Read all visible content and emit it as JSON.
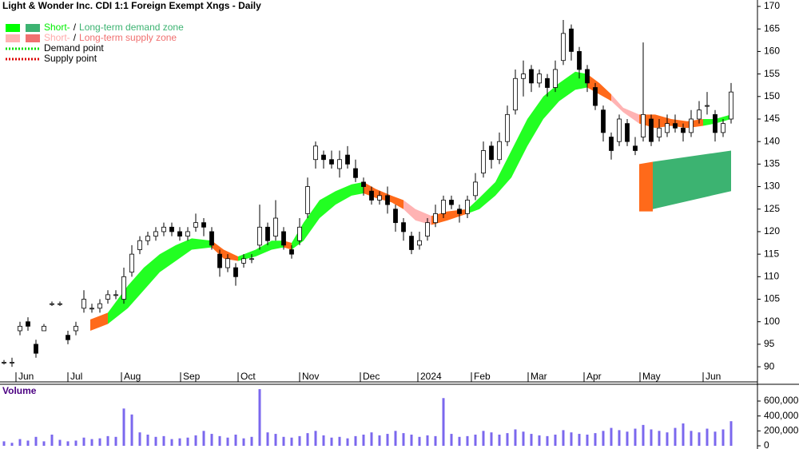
{
  "chart_data": {
    "type": "candlestick",
    "title": "Light & Wonder Inc. CDI 1:1 Foreign Exempt Xngs - Daily",
    "legend": [
      {
        "parts": [
          "Short-",
          "/",
          "Long-term demand zone"
        ],
        "colors": [
          "#00ee00",
          "#000000",
          "#3cb371"
        ],
        "swatches": [
          "#00ff00",
          "#3cb371"
        ]
      },
      {
        "parts": [
          "Short-",
          "/",
          "Long-term supply zone"
        ],
        "colors": [
          "#ffaaaa",
          "#000000",
          "#f07070"
        ],
        "swatches": [
          "#ffb3b3",
          "#f07070"
        ]
      },
      {
        "parts": [
          "Demand point"
        ],
        "colors": [
          "#000000"
        ],
        "line": "#00dd00"
      },
      {
        "parts": [
          "Supply point"
        ],
        "colors": [
          "#000000"
        ],
        "line": "#dd0000"
      }
    ],
    "xlim": [
      0,
      94.8
    ],
    "xticks": [
      {
        "value": 2,
        "label": "Jun"
      },
      {
        "value": 8.5,
        "label": "Jul"
      },
      {
        "value": 15.2,
        "label": "Aug"
      },
      {
        "value": 22.6,
        "label": "Sep"
      },
      {
        "value": 29.8,
        "label": "Oct"
      },
      {
        "value": 37.5,
        "label": "Nov"
      },
      {
        "value": 45.1,
        "label": "Dec"
      },
      {
        "value": 52.3,
        "label": "2024"
      },
      {
        "value": 59,
        "label": "Feb"
      },
      {
        "value": 66.1,
        "label": "Mar"
      },
      {
        "value": 73.1,
        "label": "Apr"
      },
      {
        "value": 80.1,
        "label": "May"
      },
      {
        "value": 88,
        "label": "Jun"
      }
    ],
    "ylim": [
      87,
      171
    ],
    "yticks": [
      90,
      95,
      100,
      105,
      110,
      115,
      120,
      125,
      130,
      135,
      140,
      145,
      150,
      155,
      160,
      165,
      170
    ],
    "candles": [
      [
        91,
        91.5,
        90.5,
        91
      ],
      [
        91,
        92,
        90,
        91
      ],
      [
        98,
        100,
        97,
        99
      ],
      [
        100,
        101,
        98,
        99
      ],
      [
        95,
        96,
        92,
        93
      ],
      [
        98,
        99.5,
        98,
        99
      ],
      [
        104,
        104.5,
        103.5,
        104
      ],
      [
        104,
        104.5,
        103.5,
        104
      ],
      [
        97,
        98,
        95,
        96
      ],
      [
        98,
        100,
        97,
        99
      ],
      [
        103,
        107,
        102,
        105
      ],
      [
        103,
        104,
        102,
        103
      ],
      [
        103,
        105,
        102,
        104
      ],
      [
        105,
        107,
        104,
        106
      ],
      [
        106,
        107,
        105,
        106
      ],
      [
        105,
        112,
        104,
        110
      ],
      [
        111,
        117,
        110,
        115
      ],
      [
        116,
        119,
        115,
        118
      ],
      [
        118,
        120,
        117,
        119
      ],
      [
        119,
        121,
        118,
        120
      ],
      [
        120,
        122,
        119,
        121
      ],
      [
        121,
        122,
        119,
        120
      ],
      [
        120,
        121,
        118,
        119
      ],
      [
        119,
        121,
        118,
        120
      ],
      [
        121,
        124,
        120,
        122
      ],
      [
        122,
        123,
        119,
        121
      ],
      [
        120,
        121,
        116,
        117
      ],
      [
        115,
        116,
        110,
        112
      ],
      [
        112,
        115,
        111,
        114
      ],
      [
        112,
        113,
        108,
        110
      ],
      [
        113,
        115,
        112,
        114
      ],
      [
        114,
        115,
        113,
        114
      ],
      [
        117,
        126,
        116,
        121
      ],
      [
        121,
        122,
        117,
        118
      ],
      [
        119,
        127,
        118,
        123
      ],
      [
        120,
        121,
        116,
        117
      ],
      [
        116,
        117,
        114,
        115
      ],
      [
        118,
        123,
        117,
        121
      ],
      [
        124,
        132,
        123,
        130
      ],
      [
        136,
        140,
        134,
        139
      ],
      [
        137,
        138,
        134,
        136
      ],
      [
        136,
        138,
        134,
        135
      ],
      [
        134,
        138,
        132,
        136
      ],
      [
        137,
        139,
        134,
        135
      ],
      [
        134,
        136,
        131,
        132
      ],
      [
        131,
        132,
        128,
        130
      ],
      [
        129,
        130,
        126,
        127
      ],
      [
        127,
        129,
        126,
        128
      ],
      [
        128,
        130,
        124,
        126
      ],
      [
        125,
        126,
        120,
        122
      ],
      [
        122,
        123,
        118,
        120
      ],
      [
        119,
        120,
        115,
        116
      ],
      [
        117,
        120,
        116,
        118
      ],
      [
        119,
        123,
        118,
        122
      ],
      [
        122,
        126,
        121,
        124
      ],
      [
        124,
        128,
        123,
        127
      ],
      [
        127,
        128,
        125,
        126
      ],
      [
        125,
        126,
        122,
        124
      ],
      [
        124,
        128,
        123,
        127
      ],
      [
        128,
        133,
        127,
        131
      ],
      [
        133,
        140,
        132,
        138
      ],
      [
        139,
        140,
        134,
        136
      ],
      [
        136,
        142,
        135,
        140
      ],
      [
        140,
        148,
        139,
        146
      ],
      [
        147,
        156,
        146,
        154
      ],
      [
        154,
        158,
        150,
        155
      ],
      [
        156,
        157,
        151,
        153
      ],
      [
        153,
        156,
        152,
        155
      ],
      [
        154,
        155,
        150,
        152
      ],
      [
        152,
        158,
        151,
        156
      ],
      [
        158,
        167,
        157,
        164
      ],
      [
        165,
        166,
        158,
        160
      ],
      [
        160,
        161,
        154,
        156
      ],
      [
        156,
        157,
        151,
        153
      ],
      [
        152,
        153,
        147,
        148
      ],
      [
        147,
        148,
        140,
        142
      ],
      [
        141,
        142,
        136,
        138
      ],
      [
        140,
        146,
        139,
        145
      ],
      [
        144,
        145,
        139,
        140
      ],
      [
        139,
        141,
        137,
        138
      ],
      [
        141,
        162,
        140,
        146
      ],
      [
        145,
        146,
        139,
        140
      ],
      [
        141,
        145,
        140,
        143
      ],
      [
        142,
        146,
        141,
        144
      ],
      [
        144,
        146,
        142,
        143
      ],
      [
        143,
        144,
        140,
        142
      ],
      [
        142,
        147,
        141,
        145
      ],
      [
        145,
        149,
        144,
        147
      ],
      [
        148,
        151,
        146,
        148
      ],
      [
        146,
        147,
        140,
        142
      ],
      [
        142,
        145,
        141,
        144
      ],
      [
        145,
        153,
        144,
        151
      ]
    ],
    "zones": [
      {
        "color": "#ff6a1a",
        "x": [
          11.3,
          13.5
        ],
        "upper": [
          100.5,
          102
        ],
        "lower": [
          98,
          99.5
        ]
      },
      {
        "color": "#22ff22",
        "x": [
          13.5,
          16,
          18,
          20,
          22,
          24,
          26.5
        ],
        "upper": [
          102,
          108,
          112,
          115,
          117,
          118.5,
          118
        ],
        "lower": [
          99.5,
          103,
          107,
          111,
          113.5,
          116,
          116.5
        ]
      },
      {
        "color": "#ff6a1a",
        "x": [
          26.5,
          28,
          29.8
        ],
        "upper": [
          118,
          116,
          114.5
        ],
        "lower": [
          116.5,
          114,
          113.5
        ]
      },
      {
        "color": "#22ff22",
        "x": [
          29.8,
          32,
          34,
          35.5
        ],
        "upper": [
          114.5,
          116,
          118,
          118
        ],
        "lower": [
          113.5,
          114.5,
          116,
          116.5
        ]
      },
      {
        "color": "#ff6a1a",
        "x": [
          35.5,
          36.5
        ],
        "upper": [
          118,
          117.5
        ],
        "lower": [
          116.5,
          116
        ]
      },
      {
        "color": "#22ff22",
        "x": [
          36.5,
          38,
          40,
          42,
          44,
          45.5
        ],
        "upper": [
          117.5,
          122,
          127,
          129,
          130.5,
          131
        ],
        "lower": [
          116,
          118,
          123,
          126,
          128,
          128.5
        ]
      },
      {
        "color": "#ff6a1a",
        "x": [
          45.5,
          47,
          49,
          50.5
        ],
        "upper": [
          131,
          129.5,
          128,
          127
        ],
        "lower": [
          128.5,
          127.5,
          126.5,
          125
        ]
      },
      {
        "color": "#ffb3b3",
        "x": [
          50.5,
          52,
          54
        ],
        "upper": [
          127,
          125,
          123.5
        ],
        "lower": [
          125,
          122.5,
          121.5
        ]
      },
      {
        "color": "#ff6a1a",
        "x": [
          54,
          56,
          58.5
        ],
        "upper": [
          123.5,
          124.5,
          125
        ],
        "lower": [
          121.5,
          122.5,
          124
        ]
      },
      {
        "color": "#22ff22",
        "x": [
          58.5,
          60,
          62,
          64,
          66,
          68,
          70,
          72,
          73.5
        ],
        "upper": [
          125,
          127.5,
          131,
          138,
          145,
          150,
          153,
          155.5,
          155
        ],
        "lower": [
          124,
          125,
          128,
          132,
          139,
          145,
          149,
          151.5,
          152
        ]
      },
      {
        "color": "#ff6a1a",
        "x": [
          73.5,
          75,
          76.5
        ],
        "upper": [
          155,
          153,
          150.5
        ],
        "lower": [
          152,
          150.5,
          149
        ]
      },
      {
        "color": "#ffb3b3",
        "x": [
          76.5,
          78,
          80
        ],
        "upper": [
          150.5,
          147.5,
          146
        ],
        "lower": [
          149,
          146.5,
          144
        ]
      },
      {
        "color": "#ff6a1a",
        "x": [
          80,
          82,
          84,
          86,
          88
        ],
        "upper": [
          146,
          146,
          145,
          144.5,
          145
        ],
        "lower": [
          144,
          143,
          143.5,
          143,
          143.5
        ]
      },
      {
        "color": "#22ff22",
        "x": [
          88,
          89.5,
          91.5
        ],
        "upper": [
          145,
          145,
          146
        ],
        "lower": [
          143.5,
          144,
          145
        ]
      },
      {
        "color": "#ff6a1a",
        "x": [
          80,
          81.7
        ],
        "upper": [
          135,
          135.5
        ],
        "lower": [
          124.5,
          124.5
        ]
      },
      {
        "color": "#3cb371",
        "x": [
          81.7,
          91.5
        ],
        "upper": [
          135.5,
          138
        ],
        "lower": [
          125,
          129
        ]
      }
    ],
    "volume": {
      "label": "Volume",
      "color": "#7b68ee",
      "ylim": [
        0,
        825000
      ],
      "yticks": [
        0,
        {
          "value": 200000,
          "label": "200,000"
        },
        {
          "value": 400000,
          "label": "400,000"
        },
        {
          "value": 600000,
          "label": "600,000"
        }
      ],
      "values": [
        60000,
        40000,
        90000,
        70000,
        120000,
        60000,
        150000,
        80000,
        60000,
        70000,
        110000,
        90000,
        100000,
        130000,
        120000,
        500000,
        420000,
        180000,
        150000,
        120000,
        130000,
        90000,
        100000,
        110000,
        140000,
        200000,
        160000,
        130000,
        110000,
        150000,
        100000,
        120000,
        760000,
        180000,
        160000,
        120000,
        110000,
        130000,
        170000,
        200000,
        140000,
        110000,
        120000,
        100000,
        130000,
        150000,
        180000,
        140000,
        160000,
        200000,
        170000,
        150000,
        120000,
        140000,
        130000,
        640000,
        160000,
        120000,
        130000,
        150000,
        200000,
        180000,
        150000,
        170000,
        220000,
        190000,
        160000,
        140000,
        130000,
        150000,
        210000,
        180000,
        160000,
        150000,
        170000,
        200000,
        240000,
        210000,
        190000,
        230000,
        280000,
        220000,
        200000,
        180000,
        240000,
        300000,
        200000,
        180000,
        230000,
        190000,
        220000,
        330000
      ]
    }
  }
}
